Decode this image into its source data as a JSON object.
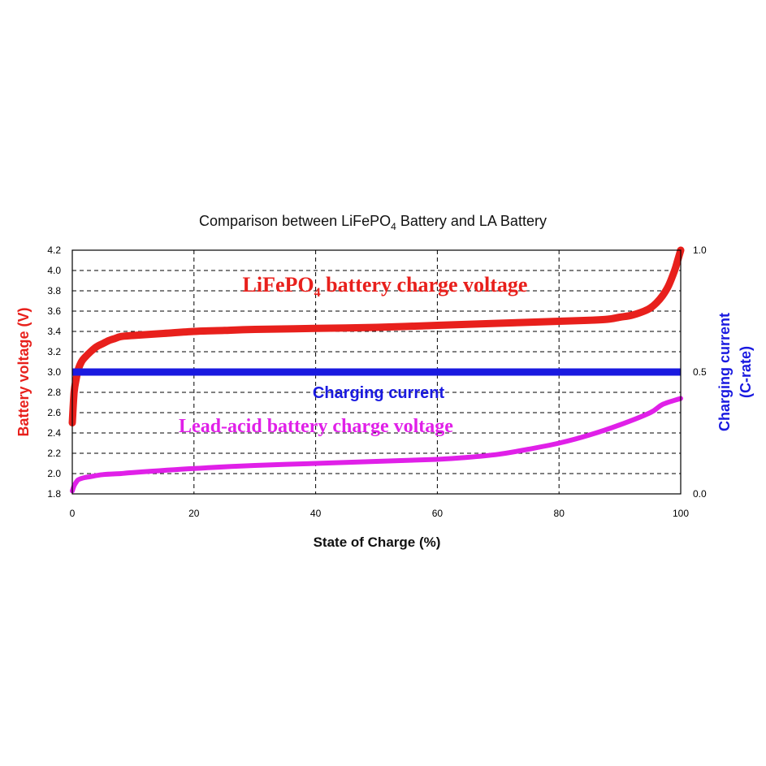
{
  "chart_data": {
    "type": "line",
    "title_pre": "Comparison between LiFePO",
    "title_sub": "4",
    "title_post": " Battery and LA Battery",
    "xlabel": "State of Charge (%)",
    "ylabel_left": "Battery voltage (V)",
    "ylabel_right_line1": "Charging current",
    "ylabel_right_line2": "(C-rate)",
    "xlim": [
      0,
      100
    ],
    "ylim_left": [
      1.8,
      4.2
    ],
    "ylim_right": [
      0.0,
      1.0
    ],
    "x_ticks": [
      "0",
      "20",
      "40",
      "60",
      "80",
      "100"
    ],
    "y_ticks_left": [
      "1.8",
      "2.0",
      "2.2",
      "2.4",
      "2.6",
      "2.8",
      "3.0",
      "3.2",
      "3.4",
      "3.6",
      "3.8",
      "4.0",
      "4.2"
    ],
    "y_ticks_right": [
      "0.0",
      "0.5",
      "1.0"
    ],
    "grid": true,
    "series": [
      {
        "name_pre": "LiFePO",
        "name_sub": "4",
        "name_post": " battery charge voltage",
        "color": "#e8201c",
        "axis": "left",
        "x": [
          0,
          0.3,
          0.7,
          1,
          1.5,
          2,
          3,
          4,
          5,
          6,
          7,
          8,
          10,
          15,
          20,
          25,
          30,
          40,
          50,
          60,
          70,
          80,
          85,
          88,
          90,
          92,
          94,
          95,
          96,
          97,
          98,
          99,
          99.5,
          100
        ],
        "y": [
          2.5,
          2.8,
          2.95,
          3.03,
          3.1,
          3.14,
          3.2,
          3.25,
          3.28,
          3.31,
          3.33,
          3.35,
          3.36,
          3.38,
          3.4,
          3.41,
          3.42,
          3.43,
          3.44,
          3.46,
          3.48,
          3.5,
          3.51,
          3.52,
          3.54,
          3.56,
          3.6,
          3.63,
          3.68,
          3.75,
          3.85,
          4.0,
          4.1,
          4.2
        ]
      },
      {
        "name": "Lead-acid battery charge voltage",
        "color": "#e020e8",
        "axis": "left",
        "x": [
          0,
          0.3,
          0.7,
          1,
          2,
          3,
          5,
          8,
          10,
          20,
          30,
          40,
          50,
          60,
          65,
          70,
          75,
          80,
          85,
          90,
          95,
          97,
          100
        ],
        "y": [
          1.83,
          1.88,
          1.92,
          1.94,
          1.96,
          1.97,
          1.99,
          2.0,
          2.01,
          2.05,
          2.08,
          2.1,
          2.12,
          2.14,
          2.16,
          2.19,
          2.24,
          2.3,
          2.38,
          2.48,
          2.6,
          2.68,
          2.74
        ]
      },
      {
        "name": "Charging current",
        "color": "#1a1ae0",
        "axis": "right",
        "x": [
          0,
          100
        ],
        "y": [
          0.5,
          0.5
        ]
      }
    ]
  }
}
